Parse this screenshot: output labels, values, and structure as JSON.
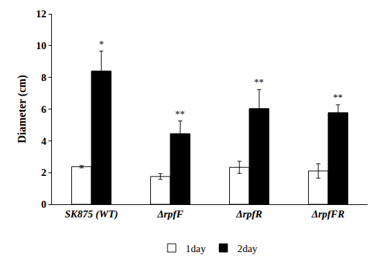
{
  "chart_data": {
    "type": "bar",
    "categories": [
      "SK875 (WT)",
      "ΔrpfF",
      "ΔrpfR",
      "ΔrpfFR"
    ],
    "series": [
      {
        "name": "1day",
        "color": "#ffffff",
        "values": [
          2.37,
          1.75,
          2.33,
          2.1
        ],
        "errors": [
          0.07,
          0.18,
          0.38,
          0.45
        ]
      },
      {
        "name": "2day",
        "color": "#000000",
        "values": [
          8.4,
          4.45,
          6.03,
          5.77
        ],
        "errors": [
          1.25,
          0.8,
          1.2,
          0.5
        ]
      }
    ],
    "y_label": "Diameter (cm)",
    "ylim": [
      0,
      12
    ],
    "yticks": [
      0,
      2,
      4,
      6,
      8,
      10,
      12
    ],
    "grid": false,
    "legend": "bottom",
    "annotations": [
      {
        "category": "SK875 (WT)",
        "series": "2day",
        "text": "*"
      },
      {
        "category": "ΔrpfF",
        "series": "2day",
        "text": "**"
      },
      {
        "category": "ΔrpfR",
        "series": "2day",
        "text": "**"
      },
      {
        "category": "ΔrpfFR",
        "series": "2day",
        "text": "**"
      }
    ]
  }
}
